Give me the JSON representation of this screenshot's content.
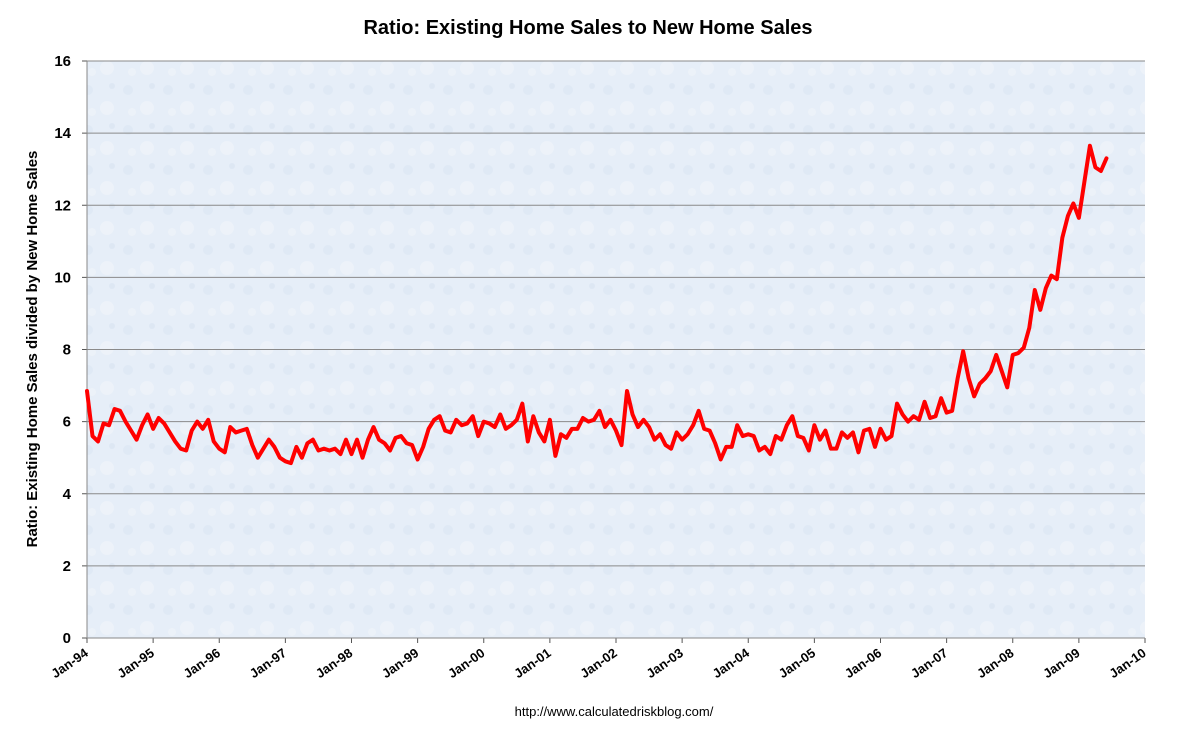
{
  "chart_data": {
    "type": "line",
    "title": "Ratio: Existing Home Sales to New Home Sales",
    "ylabel": "Ratio: Existing Home Sales divided by New Home Sales",
    "xlabel": "",
    "ylim": [
      0,
      16
    ],
    "yticks": [
      0,
      2,
      4,
      6,
      8,
      10,
      12,
      14,
      16
    ],
    "xlim": [
      1994.0,
      2010.0
    ],
    "xtick_labels": [
      "Jan-94",
      "Jan-95",
      "Jan-96",
      "Jan-97",
      "Jan-98",
      "Jan-99",
      "Jan-00",
      "Jan-01",
      "Jan-02",
      "Jan-03",
      "Jan-04",
      "Jan-05",
      "Jan-06",
      "Jan-07",
      "Jan-08",
      "Jan-09",
      "Jan-10"
    ],
    "grid": true,
    "series_color": "#ff0000",
    "series": [
      {
        "name": "Ratio",
        "start": "Jan-94",
        "frequency": "monthly",
        "values": [
          6.85,
          5.6,
          5.45,
          5.95,
          5.9,
          6.35,
          6.3,
          6.0,
          5.75,
          5.5,
          5.9,
          6.2,
          5.8,
          6.1,
          5.95,
          5.7,
          5.45,
          5.25,
          5.2,
          5.75,
          6.0,
          5.8,
          6.05,
          5.45,
          5.25,
          5.15,
          5.85,
          5.7,
          5.75,
          5.8,
          5.35,
          5.0,
          5.25,
          5.5,
          5.3,
          5.0,
          4.9,
          4.85,
          5.3,
          5.0,
          5.4,
          5.5,
          5.2,
          5.25,
          5.2,
          5.25,
          5.1,
          5.5,
          5.1,
          5.5,
          5.0,
          5.5,
          5.85,
          5.5,
          5.4,
          5.2,
          5.55,
          5.6,
          5.4,
          5.35,
          4.95,
          5.3,
          5.8,
          6.05,
          6.15,
          5.75,
          5.7,
          6.05,
          5.9,
          5.95,
          6.15,
          5.6,
          6.0,
          5.95,
          5.85,
          6.2,
          5.8,
          5.9,
          6.05,
          6.5,
          5.45,
          6.15,
          5.7,
          5.45,
          6.05,
          5.05,
          5.65,
          5.55,
          5.8,
          5.8,
          6.1,
          6.0,
          6.05,
          6.3,
          5.85,
          6.05,
          5.75,
          5.35,
          6.85,
          6.2,
          5.85,
          6.05,
          5.85,
          5.5,
          5.65,
          5.35,
          5.25,
          5.7,
          5.5,
          5.65,
          5.9,
          6.3,
          5.8,
          5.75,
          5.4,
          4.95,
          5.3,
          5.3,
          5.9,
          5.6,
          5.65,
          5.6,
          5.2,
          5.3,
          5.1,
          5.6,
          5.5,
          5.9,
          6.15,
          5.6,
          5.55,
          5.2,
          5.9,
          5.5,
          5.75,
          5.25,
          5.25,
          5.7,
          5.55,
          5.7,
          5.15,
          5.75,
          5.8,
          5.3,
          5.8,
          5.5,
          5.6,
          6.5,
          6.2,
          6.0,
          6.15,
          6.05,
          6.55,
          6.1,
          6.15,
          6.65,
          6.25,
          6.3,
          7.2,
          7.95,
          7.2,
          6.7,
          7.05,
          7.2,
          7.4,
          7.85,
          7.4,
          6.95,
          7.85,
          7.9,
          8.05,
          8.6,
          9.65,
          9.1,
          9.7,
          10.05,
          9.95,
          11.1,
          11.7,
          12.05,
          11.65,
          12.65,
          13.65,
          13.05,
          12.95,
          13.3
        ]
      }
    ]
  },
  "footer": {
    "source": "http://www.calculatedriskblog.com/"
  }
}
